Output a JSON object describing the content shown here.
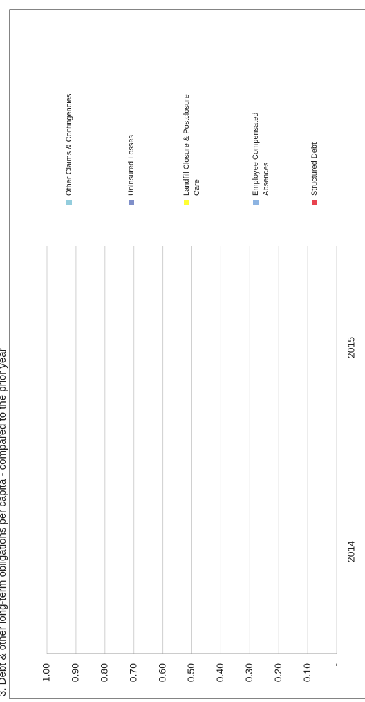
{
  "chart_data": {
    "type": "bar",
    "stacked": true,
    "title": "3. Debt & other long-term obligations per capita - compared to the prior year",
    "categories": [
      "2014",
      "2015"
    ],
    "series": [
      {
        "name": "Structured Debt",
        "color": "#e8434f",
        "values": [
          0,
          0
        ]
      },
      {
        "name": "Employee Compensated Absences",
        "color": "#8db4e2",
        "values": [
          0,
          0
        ]
      },
      {
        "name": "Landfill Closure & Postclosure Care",
        "color": "#ffff33",
        "values": [
          0,
          0
        ]
      },
      {
        "name": "Uninsured Losses",
        "color": "#7f8fc9",
        "values": [
          0,
          0
        ]
      },
      {
        "name": "Other Claims & Contingencies",
        "color": "#93cddd",
        "values": [
          0,
          0
        ]
      }
    ],
    "ylim": [
      0,
      1
    ],
    "yticks": [
      {
        "value": 0,
        "label": "-"
      },
      {
        "value": 0.1,
        "label": "0.10"
      },
      {
        "value": 0.2,
        "label": "0.20"
      },
      {
        "value": 0.3,
        "label": "0.30"
      },
      {
        "value": 0.4,
        "label": "0.40"
      },
      {
        "value": 0.5,
        "label": "0.50"
      },
      {
        "value": 0.6,
        "label": "0.60"
      },
      {
        "value": 0.7,
        "label": "0.70"
      },
      {
        "value": 0.8,
        "label": "0.80"
      },
      {
        "value": 0.9,
        "label": "0.90"
      },
      {
        "value": 1,
        "label": "1.00"
      }
    ],
    "grid": true,
    "legend": "right"
  }
}
